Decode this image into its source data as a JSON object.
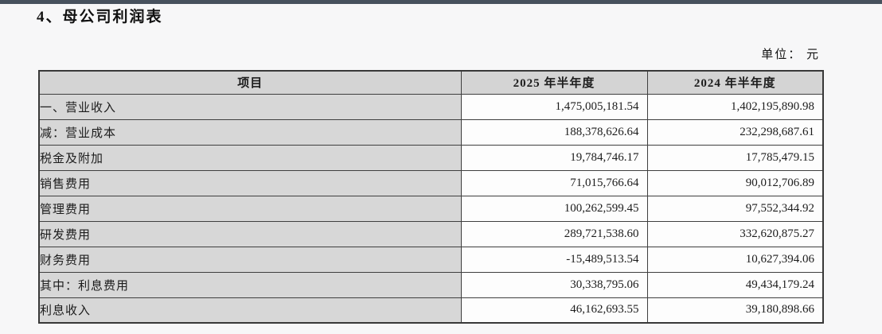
{
  "page": {
    "title": "4、母公司利润表",
    "unit_label": "单位： 元"
  },
  "table": {
    "columns": [
      "项目",
      "2025 年半年度",
      "2024 年半年度"
    ],
    "rows": [
      {
        "label": "一、营业收入",
        "v2025": "1,475,005,181.54",
        "v2024": "1,402,195,890.98"
      },
      {
        "label": "减：营业成本",
        "v2025": "188,378,626.64",
        "v2024": "232,298,687.61"
      },
      {
        "label": "税金及附加",
        "v2025": "19,784,746.17",
        "v2024": "17,785,479.15"
      },
      {
        "label": "销售费用",
        "v2025": "71,015,766.64",
        "v2024": "90,012,706.89"
      },
      {
        "label": "管理费用",
        "v2025": "100,262,599.45",
        "v2024": "97,552,344.92"
      },
      {
        "label": "研发费用",
        "v2025": "289,721,538.60",
        "v2024": "332,620,875.27"
      },
      {
        "label": "财务费用",
        "v2025": "-15,489,513.54",
        "v2024": "10,627,394.06"
      },
      {
        "label": "其中：利息费用",
        "v2025": "30,338,795.06",
        "v2024": "49,434,179.24"
      },
      {
        "label": "利息收入",
        "v2025": "46,162,693.55",
        "v2024": "39,180,898.66"
      }
    ]
  }
}
